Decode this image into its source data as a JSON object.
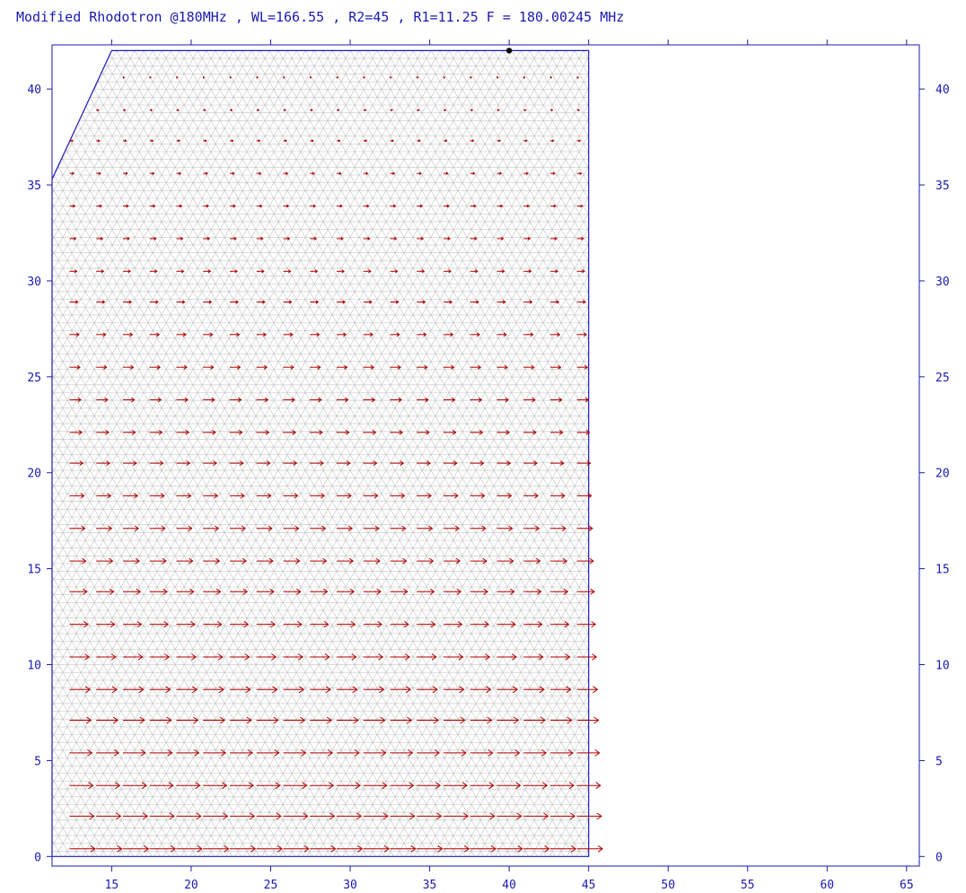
{
  "title": "Modified Rhodotron @180MHz , WL=166.55 , R2=45 , R1=11.25  F = 180.00245 MHz",
  "chart_data": {
    "type": "field-map",
    "title": "Modified Rhodotron @180MHz , WL=166.55 , R2=45 , R1=11.25  F = 180.00245 MHz",
    "xlim": [
      11.25,
      65.8
    ],
    "ylim": [
      -0.5,
      42.3
    ],
    "x_ticks": [
      15,
      20,
      25,
      30,
      35,
      40,
      45,
      50,
      55,
      60,
      65
    ],
    "y_ticks": [
      0,
      5,
      10,
      15,
      20,
      25,
      30,
      35,
      40
    ],
    "y_ticks_right": true,
    "region_boundary": [
      [
        11.25,
        0
      ],
      [
        45,
        0
      ],
      [
        45,
        42
      ],
      [
        15,
        42
      ],
      [
        11.25,
        35.3
      ]
    ],
    "marker_point": [
      40,
      42
    ],
    "field_arrows": {
      "direction": "+x",
      "row_y": [
        0.4,
        2.1,
        3.7,
        5.4,
        7.1,
        8.7,
        10.4,
        12.1,
        13.8,
        15.4,
        17.1,
        18.8,
        20.5,
        22.1,
        23.8,
        25.5,
        27.2,
        28.9,
        30.5,
        32.2,
        33.9,
        35.6,
        37.3,
        38.9,
        40.6
      ],
      "column_x_start": 12.9,
      "column_x_step": 1.68,
      "relative_magnitude_top": 0.05,
      "relative_magnitude_bottom": 1.0
    },
    "mesh": "triangular",
    "colors": {
      "axes": "#1a1ab0",
      "boundary": "#1a1ab0",
      "mesh": "#c4c4c4",
      "arrows": "#b00000",
      "marker": "#000000"
    }
  }
}
